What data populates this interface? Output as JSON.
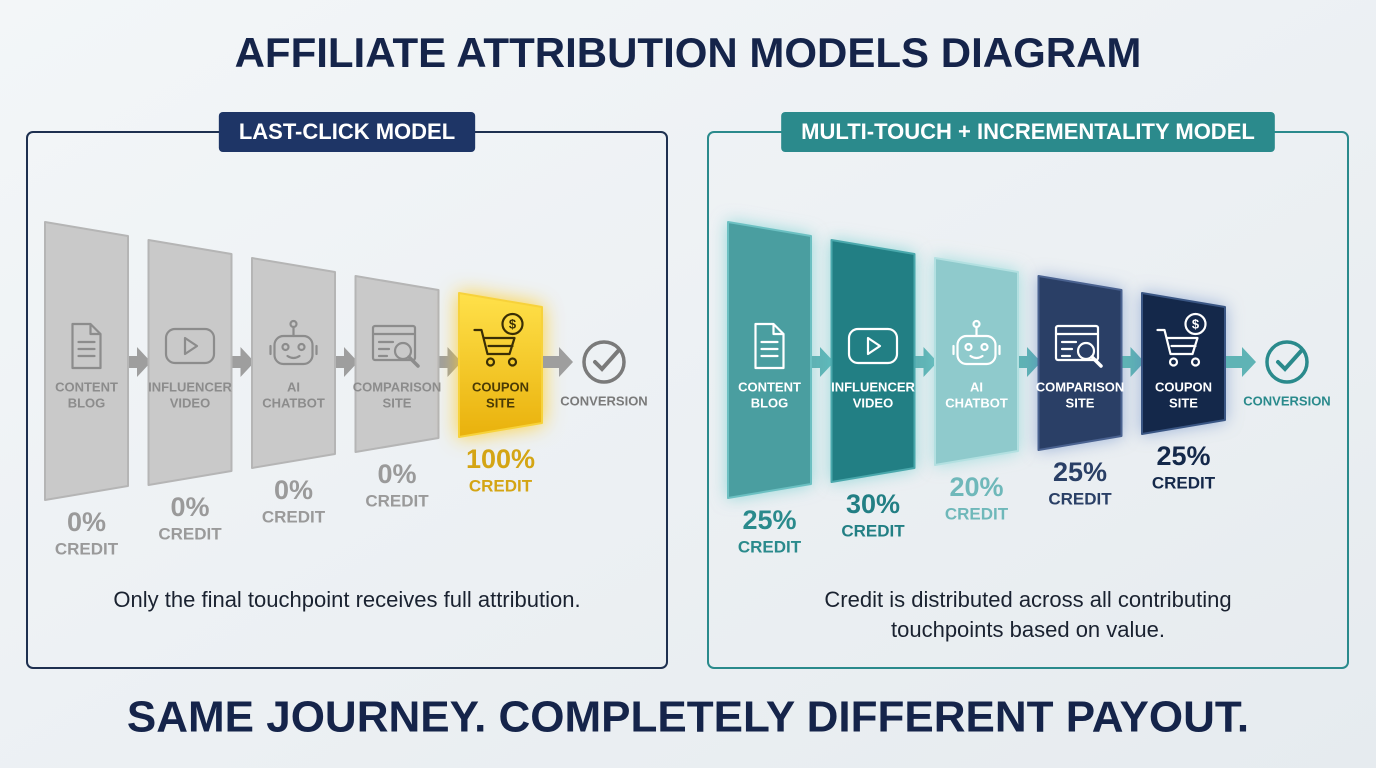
{
  "title": "AFFILIATE ATTRIBUTION MODELS DIAGRAM",
  "panels": [
    {
      "title": "LAST-CLICK MODEL",
      "steps": [
        {
          "label": [
            "CONTENT",
            "BLOG"
          ],
          "credit": "0%",
          "credit_label": "CREDIT"
        },
        {
          "label": [
            "INFLUENCER",
            "VIDEO"
          ],
          "credit": "0%",
          "credit_label": "CREDIT"
        },
        {
          "label": [
            "AI",
            "CHATBOT"
          ],
          "credit": "0%",
          "credit_label": "CREDIT"
        },
        {
          "label": [
            "COMPARISON",
            "SITE"
          ],
          "credit": "0%",
          "credit_label": "CREDIT"
        },
        {
          "label": [
            "COUPON",
            "SITE"
          ],
          "credit": "100%",
          "credit_label": "CREDIT"
        }
      ],
      "conversion": "CONVERSION",
      "caption": [
        "Only the final touchpoint receives full attribution."
      ]
    },
    {
      "title": "MULTI-TOUCH + INCREMENTALITY MODEL",
      "steps": [
        {
          "label": [
            "CONTENT",
            "BLOG"
          ],
          "credit": "25%",
          "credit_label": "CREDIT"
        },
        {
          "label": [
            "INFLUENCER",
            "VIDEO"
          ],
          "credit": "30%",
          "credit_label": "CREDIT"
        },
        {
          "label": [
            "AI",
            "CHATBOT"
          ],
          "credit": "20%",
          "credit_label": "CREDIT"
        },
        {
          "label": [
            "COMPARISON",
            "SITE"
          ],
          "credit": "25%",
          "credit_label": "CREDIT"
        },
        {
          "label": [
            "COUPON",
            "SITE"
          ],
          "credit": "25%",
          "credit_label": "CREDIT"
        }
      ],
      "conversion": "CONVERSION",
      "caption": [
        "Credit is distributed across all contributing",
        "touchpoints based on value."
      ]
    }
  ],
  "footer": "SAME JOURNEY. COMPLETELY DIFFERENT PAYOUT."
}
